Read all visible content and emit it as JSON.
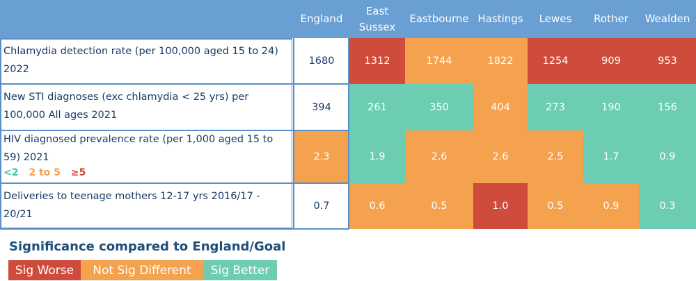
{
  "colors": {
    "header": "#6a9fd3",
    "worse": "#cf4b3b",
    "not_different": "#f5a24f",
    "better": "#6ccdb2",
    "neutral": "#ffffff"
  },
  "chart_data": {
    "type": "table",
    "columns": [
      "England",
      "East Sussex",
      "Eastbourne",
      "Hastings",
      "Lewes",
      "Rother",
      "Wealden"
    ],
    "rows": [
      {
        "label": "Chlamydia detection rate (per 100,000 aged 15 to 24) 2022",
        "values": [
          "1680",
          "1312",
          "1744",
          "1822",
          "1254",
          "909",
          "953"
        ],
        "status": [
          "neutral",
          "worse",
          "not_different",
          "not_different",
          "worse",
          "worse",
          "worse"
        ]
      },
      {
        "label": "New STI diagnoses (exc chlamydia < 25 yrs) per 100,000 All ages 2021",
        "values": [
          "394",
          "261",
          "350",
          "404",
          "273",
          "190",
          "156"
        ],
        "status": [
          "neutral",
          "better",
          "better",
          "not_different",
          "better",
          "better",
          "better"
        ]
      },
      {
        "label": "HIV diagnosed prevalence rate (per 1,000 aged 15 to 59) 2021",
        "values": [
          "2.3",
          "1.9",
          "2.6",
          "2.6",
          "2.5",
          "1.7",
          "0.9"
        ],
        "status": [
          "not_different",
          "better",
          "not_different",
          "not_different",
          "not_different",
          "better",
          "better"
        ]
      },
      {
        "label": "Deliveries to teenage mothers 12-17 yrs  2016/17 - 20/21",
        "values": [
          "0.7",
          "0.6",
          "0.5",
          "1.0",
          "0.5",
          "0.9",
          "0.3"
        ],
        "status": [
          "neutral",
          "not_different",
          "not_different",
          "worse",
          "not_different",
          "not_different",
          "better"
        ]
      }
    ],
    "hiv_legend": [
      {
        "text": "<2",
        "status": "better"
      },
      {
        "text": "2 to 5",
        "status": "not_different"
      },
      {
        "text": "≥5",
        "status": "worse"
      }
    ]
  },
  "significance": {
    "title": "Significance compared to England/Goal",
    "items": [
      {
        "label": "Sig Worse",
        "status": "worse"
      },
      {
        "label": "Not Sig Different",
        "status": "not_different"
      },
      {
        "label": "Sig Better",
        "status": "better"
      }
    ]
  }
}
